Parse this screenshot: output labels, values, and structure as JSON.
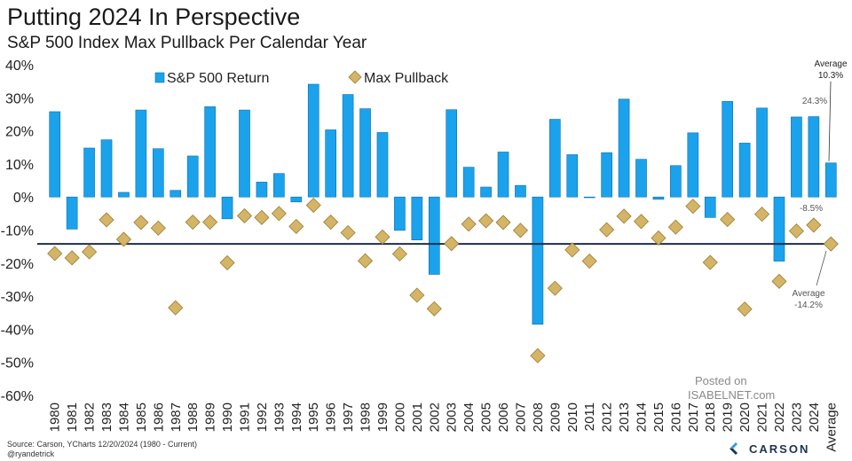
{
  "header": {
    "title": "Putting 2024 In Perspective",
    "subtitle": "S&P 500 Index Max Pullback Per Calendar Year"
  },
  "footer": {
    "source_line1": "Source: Carson, YCharts 12/20/2024 (1980 - Current)",
    "source_line2": "@ryandetrick",
    "brand": "CARSON"
  },
  "watermark": {
    "posted_on": "Posted on",
    "site": "ISABELNET.com"
  },
  "colors": {
    "bar": "#1aa3ec",
    "bar_stroke": "#0d6db0",
    "diamond": "#d4b466",
    "diamond_stroke": "#9c7e33",
    "avg_line": "#1e2d4a"
  },
  "chart_data": {
    "type": "bar",
    "categories": [
      "1980",
      "1981",
      "1982",
      "1983",
      "1984",
      "1985",
      "1986",
      "1987",
      "1988",
      "1989",
      "1990",
      "1991",
      "1992",
      "1993",
      "1994",
      "1995",
      "1996",
      "1997",
      "1998",
      "1999",
      "2000",
      "2001",
      "2002",
      "2003",
      "2004",
      "2005",
      "2006",
      "2007",
      "2008",
      "2009",
      "2010",
      "2011",
      "2012",
      "2013",
      "2014",
      "2015",
      "2016",
      "2017",
      "2018",
      "2019",
      "2020",
      "2021",
      "2022",
      "2023",
      "2024",
      "Average"
    ],
    "series": [
      {
        "name": "S&P 500 Return",
        "kind": "bar",
        "values": [
          25.8,
          -9.7,
          14.8,
          17.3,
          1.4,
          26.3,
          14.6,
          2.0,
          12.4,
          27.3,
          -6.6,
          26.3,
          4.5,
          7.1,
          -1.5,
          34.1,
          20.3,
          31.0,
          26.7,
          19.5,
          -10.1,
          -13.0,
          -23.4,
          26.4,
          9.0,
          3.0,
          13.6,
          3.5,
          -38.5,
          23.5,
          12.8,
          0.0,
          13.4,
          29.6,
          11.4,
          -0.7,
          9.5,
          19.4,
          -6.2,
          28.9,
          16.3,
          26.9,
          -19.4,
          24.2,
          24.3,
          10.3
        ]
      },
      {
        "name": "Max Pullback",
        "kind": "diamond",
        "values": [
          -17.1,
          -18.4,
          -16.6,
          -6.9,
          -12.8,
          -7.7,
          -9.4,
          -33.5,
          -7.6,
          -7.6,
          -19.9,
          -5.7,
          -6.2,
          -5.0,
          -8.9,
          -2.5,
          -7.6,
          -10.8,
          -19.3,
          -12.1,
          -17.2,
          -29.7,
          -33.8,
          -14.1,
          -8.2,
          -7.2,
          -7.7,
          -10.1,
          -48.0,
          -27.6,
          -16.0,
          -19.4,
          -9.9,
          -5.8,
          -7.4,
          -12.4,
          -9.1,
          -2.8,
          -19.8,
          -6.8,
          -33.9,
          -5.2,
          -25.5,
          -10.3,
          -8.5,
          -14.2
        ]
      }
    ],
    "average_line": -14.2,
    "ylim": [
      -60,
      40
    ],
    "yticks": [
      -60,
      -50,
      -40,
      -30,
      -20,
      -10,
      0,
      10,
      20,
      30,
      40
    ],
    "ytick_labels": [
      "-60%",
      "-50%",
      "-40%",
      "-30%",
      "-20%",
      "-10%",
      "0%",
      "10%",
      "20%",
      "30%",
      "40%"
    ],
    "legend": {
      "position": "top-left",
      "labels": [
        "S&P 500 Return",
        "Max Pullback"
      ]
    },
    "annotations": [
      {
        "lines": [
          "Average",
          "10.3%"
        ]
      },
      {
        "lines": [
          "24.3%"
        ]
      },
      {
        "lines": [
          "-8.5%"
        ]
      },
      {
        "lines": [
          "Average",
          "-14.2%"
        ]
      }
    ],
    "grid": false
  }
}
